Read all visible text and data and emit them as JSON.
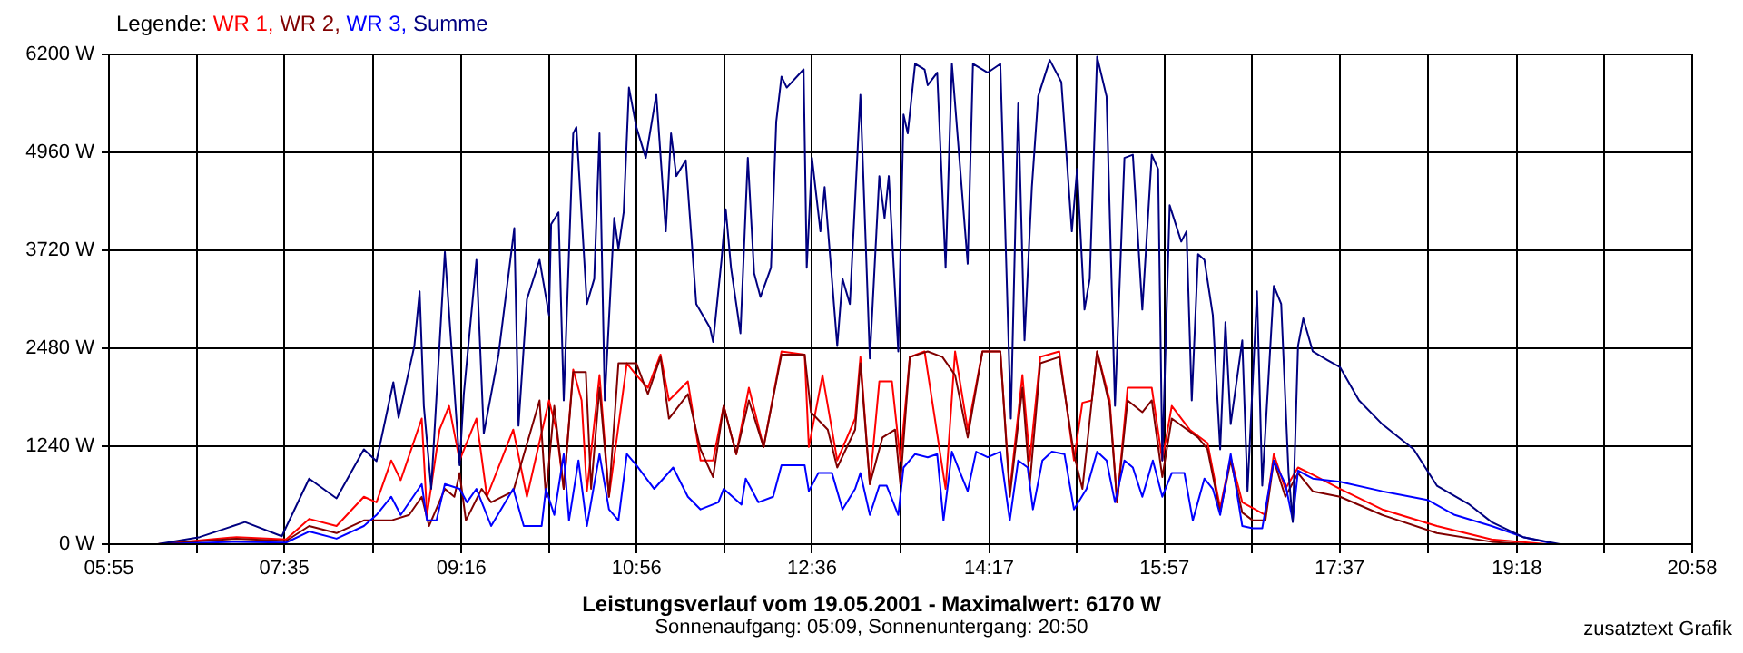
{
  "chart_data": {
    "type": "line",
    "title": "Leistungsverlauf vom 19.05.2001 - Maximalwert: 6170 W",
    "subtitle": "Sonnenaufgang: 05:09, Sonnenuntergang: 20:50",
    "annotations": [
      "zusatztext Grafik"
    ],
    "legend_title": "Legende:",
    "legend": "top left",
    "grid": true,
    "xlim": [
      5.9167,
      20.9667
    ],
    "xticks": [
      {
        "value": 5.9167,
        "label": "05:55"
      },
      {
        "value": 6.75,
        "label": null
      },
      {
        "value": 7.5833,
        "label": "07:35"
      },
      {
        "value": 8.425,
        "label": null
      },
      {
        "value": 9.2667,
        "label": "09:16"
      },
      {
        "value": 10.1,
        "label": null
      },
      {
        "value": 10.9333,
        "label": "10:56"
      },
      {
        "value": 11.7667,
        "label": null
      },
      {
        "value": 12.6,
        "label": "12:36"
      },
      {
        "value": 13.4417,
        "label": null
      },
      {
        "value": 14.2833,
        "label": "14:17"
      },
      {
        "value": 15.1167,
        "label": null
      },
      {
        "value": 15.95,
        "label": "15:57"
      },
      {
        "value": 16.7833,
        "label": null
      },
      {
        "value": 17.6167,
        "label": "17:37"
      },
      {
        "value": 18.4583,
        "label": null
      },
      {
        "value": 19.3,
        "label": "19:18"
      },
      {
        "value": 20.1333,
        "label": null
      },
      {
        "value": 20.9667,
        "label": "20:58"
      }
    ],
    "ylim": [
      0,
      6200
    ],
    "yticks": [
      {
        "value": 0,
        "label": "0 W"
      },
      {
        "value": 1240,
        "label": "1240 W"
      },
      {
        "value": 2480,
        "label": "2480 W"
      },
      {
        "value": 3720,
        "label": "3720 W"
      },
      {
        "value": 4960,
        "label": "4960 W"
      },
      {
        "value": 6200,
        "label": "6200 W"
      }
    ],
    "series": [
      {
        "name": "WR 1,",
        "color": "#ff0000",
        "x": [
          6.38,
          7.13,
          7.6,
          7.82,
          8.08,
          8.34,
          8.46,
          8.6,
          8.69,
          8.89,
          8.94,
          9.06,
          9.15,
          9.25,
          9.41,
          9.51,
          9.76,
          9.89,
          10.1,
          10.17,
          10.24,
          10.33,
          10.41,
          10.46,
          10.58,
          10.67,
          10.84,
          10.93,
          11.04,
          11.16,
          11.24,
          11.42,
          11.54,
          11.66,
          11.76,
          11.88,
          12.0,
          12.14,
          12.31,
          12.53,
          12.57,
          12.7,
          12.84,
          13.01,
          13.06,
          13.15,
          13.24,
          13.36,
          13.44,
          13.53,
          13.67,
          13.87,
          13.96,
          14.08,
          14.22,
          14.39,
          14.48,
          14.6,
          14.67,
          14.77,
          14.95,
          15.09,
          15.17,
          15.26,
          15.31,
          15.43,
          15.5,
          15.6,
          15.83,
          15.93,
          16.02,
          16.19,
          16.36,
          16.48,
          16.58,
          16.69,
          16.91,
          16.99,
          17.1,
          17.22,
          17.36,
          17.62,
          18.02,
          18.54,
          19.06,
          19.58
        ],
        "values": [
          0,
          90,
          60,
          320,
          230,
          600,
          530,
          1060,
          810,
          1590,
          370,
          1450,
          1750,
          1060,
          1590,
          600,
          1450,
          600,
          1820,
          1450,
          700,
          2210,
          1820,
          670,
          2140,
          600,
          2290,
          2140,
          1980,
          2400,
          1820,
          2060,
          1060,
          1060,
          1750,
          1140,
          1980,
          1230,
          2440,
          2400,
          1230,
          2140,
          1060,
          1590,
          2370,
          760,
          2060,
          2060,
          1060,
          2370,
          2440,
          700,
          2440,
          1450,
          2440,
          2440,
          670,
          2140,
          1060,
          2370,
          2440,
          1060,
          1790,
          1820,
          2440,
          1820,
          530,
          1980,
          1980,
          1060,
          1750,
          1450,
          1280,
          460,
          1100,
          530,
          370,
          1140,
          700,
          970,
          880,
          700,
          440,
          230,
          60,
          0
        ]
      },
      {
        "name": "WR 2,",
        "color": "#800000",
        "x": [
          6.38,
          7.13,
          7.6,
          7.82,
          8.08,
          8.34,
          8.6,
          8.77,
          8.89,
          8.96,
          9.11,
          9.2,
          9.25,
          9.31,
          9.46,
          9.55,
          9.76,
          10.01,
          10.07,
          10.15,
          10.24,
          10.33,
          10.45,
          10.5,
          10.58,
          10.67,
          10.76,
          10.93,
          11.04,
          11.16,
          11.24,
          11.42,
          11.54,
          11.66,
          11.76,
          11.88,
          12.0,
          12.14,
          12.31,
          12.53,
          12.59,
          12.75,
          12.84,
          13.01,
          13.06,
          13.15,
          13.27,
          13.39,
          13.44,
          13.53,
          13.7,
          13.84,
          13.96,
          14.08,
          14.22,
          14.39,
          14.48,
          14.6,
          14.67,
          14.77,
          14.95,
          15.09,
          15.17,
          15.26,
          15.31,
          15.43,
          15.5,
          15.6,
          15.74,
          15.83,
          15.93,
          16.02,
          16.27,
          16.36,
          16.48,
          16.58,
          16.69,
          16.79,
          16.91,
          16.99,
          17.1,
          17.22,
          17.36,
          17.62,
          18.02,
          18.54,
          19.06,
          19.41
        ],
        "values": [
          0,
          70,
          40,
          230,
          140,
          300,
          300,
          370,
          600,
          230,
          700,
          600,
          900,
          300,
          700,
          530,
          670,
          1820,
          600,
          1750,
          700,
          2180,
          2180,
          700,
          1980,
          600,
          2290,
          2290,
          1900,
          2370,
          1590,
          1900,
          1200,
          850,
          1750,
          1140,
          1820,
          1230,
          2400,
          2400,
          1670,
          1450,
          970,
          1450,
          2290,
          760,
          1350,
          1450,
          760,
          2370,
          2440,
          2370,
          2140,
          1350,
          2440,
          2440,
          600,
          1980,
          760,
          2290,
          2370,
          1140,
          700,
          1820,
          2440,
          1750,
          530,
          1820,
          1670,
          1820,
          850,
          1590,
          1350,
          1200,
          400,
          1060,
          400,
          300,
          300,
          1060,
          600,
          900,
          670,
          600,
          370,
          140,
          30,
          0
        ]
      },
      {
        "name": "WR 3,",
        "color": "#0000ff",
        "x": [
          6.38,
          7.13,
          7.6,
          7.82,
          8.08,
          8.34,
          8.46,
          8.6,
          8.69,
          8.89,
          8.94,
          9.03,
          9.11,
          9.25,
          9.32,
          9.41,
          9.55,
          9.76,
          9.86,
          10.03,
          10.07,
          10.15,
          10.24,
          10.29,
          10.38,
          10.46,
          10.58,
          10.67,
          10.76,
          10.84,
          10.93,
          11.1,
          11.28,
          11.42,
          11.54,
          11.71,
          11.76,
          11.93,
          11.97,
          12.09,
          12.23,
          12.31,
          12.53,
          12.57,
          12.66,
          12.79,
          12.89,
          13.01,
          13.06,
          13.15,
          13.24,
          13.31,
          13.42,
          13.47,
          13.58,
          13.7,
          13.79,
          13.85,
          13.93,
          14.01,
          14.08,
          14.16,
          14.27,
          14.39,
          14.48,
          14.56,
          14.65,
          14.7,
          14.79,
          14.88,
          15.0,
          15.09,
          15.21,
          15.31,
          15.4,
          15.48,
          15.57,
          15.65,
          15.74,
          15.84,
          15.93,
          16.02,
          16.14,
          16.22,
          16.33,
          16.41,
          16.48,
          16.58,
          16.69,
          16.79,
          16.88,
          16.99,
          17.1,
          17.17,
          17.22,
          17.36,
          17.62,
          18.02,
          18.45,
          18.71,
          19.06,
          19.36,
          19.67
        ],
        "values": [
          0,
          30,
          20,
          160,
          70,
          230,
          370,
          600,
          370,
          760,
          300,
          300,
          760,
          700,
          530,
          700,
          230,
          700,
          230,
          230,
          700,
          370,
          1140,
          300,
          1060,
          230,
          1140,
          440,
          300,
          1140,
          1000,
          700,
          970,
          600,
          440,
          530,
          700,
          500,
          830,
          530,
          600,
          1000,
          1000,
          670,
          900,
          900,
          440,
          700,
          900,
          370,
          740,
          740,
          370,
          970,
          1140,
          1100,
          1140,
          300,
          1170,
          900,
          670,
          1170,
          1100,
          1170,
          300,
          1060,
          970,
          440,
          1060,
          1170,
          1140,
          440,
          700,
          1170,
          1060,
          530,
          1060,
          970,
          600,
          1060,
          600,
          900,
          900,
          300,
          830,
          700,
          370,
          1140,
          230,
          200,
          200,
          1060,
          760,
          300,
          930,
          830,
          790,
          670,
          560,
          370,
          230,
          90,
          0
        ]
      },
      {
        "name": "Summe",
        "color": "#000080",
        "x": [
          6.38,
          6.78,
          7.21,
          7.56,
          7.82,
          8.08,
          8.34,
          8.46,
          8.62,
          8.67,
          8.82,
          8.87,
          8.91,
          8.98,
          9.11,
          9.25,
          9.29,
          9.41,
          9.48,
          9.62,
          9.77,
          9.81,
          9.89,
          10.01,
          10.1,
          10.12,
          10.19,
          10.24,
          10.33,
          10.36,
          10.46,
          10.53,
          10.58,
          10.63,
          10.72,
          10.76,
          10.81,
          10.86,
          10.93,
          11.02,
          11.12,
          11.21,
          11.26,
          11.31,
          11.4,
          11.5,
          11.63,
          11.66,
          11.74,
          11.78,
          11.83,
          11.92,
          11.99,
          12.05,
          12.11,
          12.21,
          12.26,
          12.31,
          12.36,
          12.52,
          12.55,
          12.6,
          12.68,
          12.72,
          12.84,
          12.89,
          12.96,
          13.06,
          13.15,
          13.24,
          13.29,
          13.33,
          13.42,
          13.47,
          13.51,
          13.58,
          13.67,
          13.7,
          13.79,
          13.87,
          13.93,
          14.08,
          14.13,
          14.27,
          14.39,
          14.49,
          14.56,
          14.62,
          14.69,
          14.75,
          14.86,
          14.97,
          15.07,
          15.12,
          15.19,
          15.24,
          15.31,
          15.4,
          15.48,
          15.57,
          15.65,
          15.74,
          15.83,
          15.89,
          15.93,
          16.0,
          16.11,
          16.16,
          16.21,
          16.27,
          16.33,
          16.41,
          16.48,
          16.53,
          16.58,
          16.69,
          16.74,
          16.83,
          16.88,
          16.99,
          17.06,
          17.13,
          17.17,
          17.22,
          17.27,
          17.36,
          17.5,
          17.62,
          17.8,
          18.02,
          18.32,
          18.54,
          18.84,
          19.06,
          19.36,
          19.71
        ],
        "values": [
          0,
          90,
          280,
          100,
          830,
          580,
          1200,
          1050,
          2050,
          1600,
          2510,
          3200,
          1750,
          700,
          3700,
          1000,
          1900,
          3600,
          1400,
          2400,
          4000,
          1500,
          3100,
          3600,
          2900,
          4050,
          4200,
          1820,
          5200,
          5280,
          3040,
          3360,
          5200,
          1820,
          4130,
          3740,
          4200,
          5780,
          5280,
          4890,
          5690,
          3960,
          5200,
          4660,
          4860,
          3040,
          2740,
          2560,
          3600,
          4240,
          3500,
          2670,
          4890,
          3430,
          3130,
          3500,
          5350,
          5920,
          5780,
          6010,
          3500,
          4890,
          3960,
          4520,
          2510,
          3360,
          3040,
          5690,
          2350,
          4660,
          4130,
          4660,
          2440,
          5440,
          5200,
          6080,
          6010,
          5810,
          5970,
          3500,
          6080,
          3550,
          6080,
          5970,
          6080,
          1590,
          5580,
          2580,
          4520,
          5670,
          6130,
          5850,
          3960,
          4750,
          2970,
          3360,
          6170,
          5670,
          1750,
          4890,
          4930,
          2970,
          4930,
          4750,
          1060,
          4290,
          3830,
          3960,
          1820,
          3670,
          3600,
          2900,
          1200,
          2810,
          1520,
          2580,
          670,
          3200,
          740,
          3270,
          3040,
          900,
          280,
          2510,
          2860,
          2440,
          2330,
          2240,
          1820,
          1520,
          1200,
          740,
          510,
          280,
          90,
          0
        ]
      }
    ]
  }
}
